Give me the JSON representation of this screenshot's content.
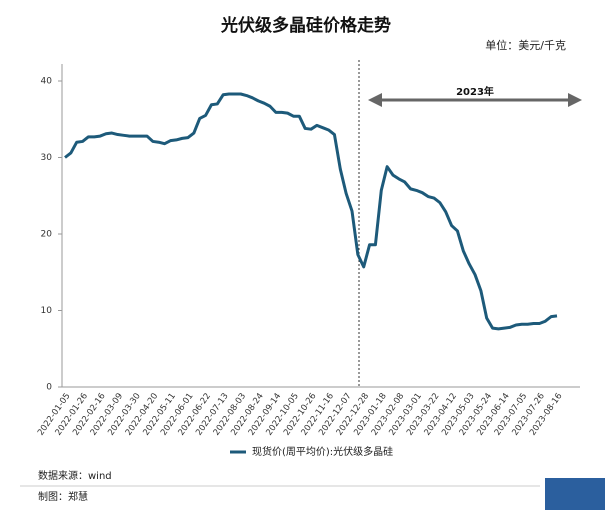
{
  "chart_data": {
    "type": "line",
    "title": "光伏级多晶硅价格走势",
    "unit_label": "单位：美元/千克",
    "annotation": "2023年",
    "categories": [
      "2022-01-05",
      null,
      null,
      "2022-01-26",
      null,
      null,
      "2022-02-16",
      null,
      null,
      "2022-03-09",
      null,
      null,
      "2022-03-30",
      null,
      null,
      "2022-04-20",
      null,
      null,
      "2022-05-11",
      null,
      null,
      "2022-06-01",
      null,
      null,
      "2022-06-22",
      null,
      null,
      "2022-07-13",
      null,
      null,
      "2022-08-03",
      null,
      null,
      "2022-08-24",
      null,
      null,
      "2022-09-14",
      null,
      null,
      "2022-10-05",
      null,
      null,
      "2022-10-26",
      null,
      null,
      "2022-11-16",
      null,
      null,
      "2022-12-07",
      null,
      null,
      "2022-12-28",
      null,
      null,
      "2023-01-18",
      null,
      null,
      "2023-02-08",
      null,
      null,
      "2023-03-01",
      null,
      null,
      "2023-03-22",
      null,
      null,
      "2023-04-12",
      null,
      null,
      "2023-05-03",
      null,
      null,
      "2023-05-24",
      null,
      null,
      "2023-06-14",
      null,
      null,
      "2023-07-05",
      null,
      null,
      "2023-07-26",
      null,
      null,
      "2023-08-16"
    ],
    "series": [
      {
        "name": "现货价(周平均价):光伏级多晶硅",
        "color": "#1d5a7a",
        "values": [
          30.0,
          30.6,
          32.0,
          32.1,
          32.7,
          32.7,
          32.8,
          33.1,
          33.2,
          33.0,
          32.9,
          32.8,
          32.8,
          32.8,
          32.8,
          32.1,
          32.0,
          31.8,
          32.2,
          32.3,
          32.5,
          32.6,
          33.2,
          35.1,
          35.5,
          36.9,
          37.0,
          38.2,
          38.3,
          38.3,
          38.3,
          38.1,
          37.8,
          37.4,
          37.1,
          36.7,
          35.9,
          35.9,
          35.8,
          35.4,
          35.4,
          33.8,
          33.7,
          34.2,
          33.9,
          33.6,
          33.0,
          28.5,
          25.3,
          23.0,
          17.3,
          15.7,
          18.6,
          18.6,
          25.7,
          28.8,
          27.7,
          27.2,
          26.8,
          25.9,
          25.7,
          25.4,
          24.9,
          24.7,
          24.1,
          22.9,
          21.1,
          20.4,
          17.8,
          16.1,
          14.7,
          12.6,
          9.0,
          7.7,
          7.6,
          7.7,
          7.8,
          8.1,
          8.2,
          8.2,
          8.3,
          8.3,
          8.6,
          9.2,
          9.3
        ]
      }
    ],
    "ylim": [
      0,
      40
    ],
    "yticks": [
      0,
      10,
      20,
      30,
      40
    ],
    "grid": false,
    "source": "数据来源：wind",
    "credit": "制图：郑慧"
  }
}
